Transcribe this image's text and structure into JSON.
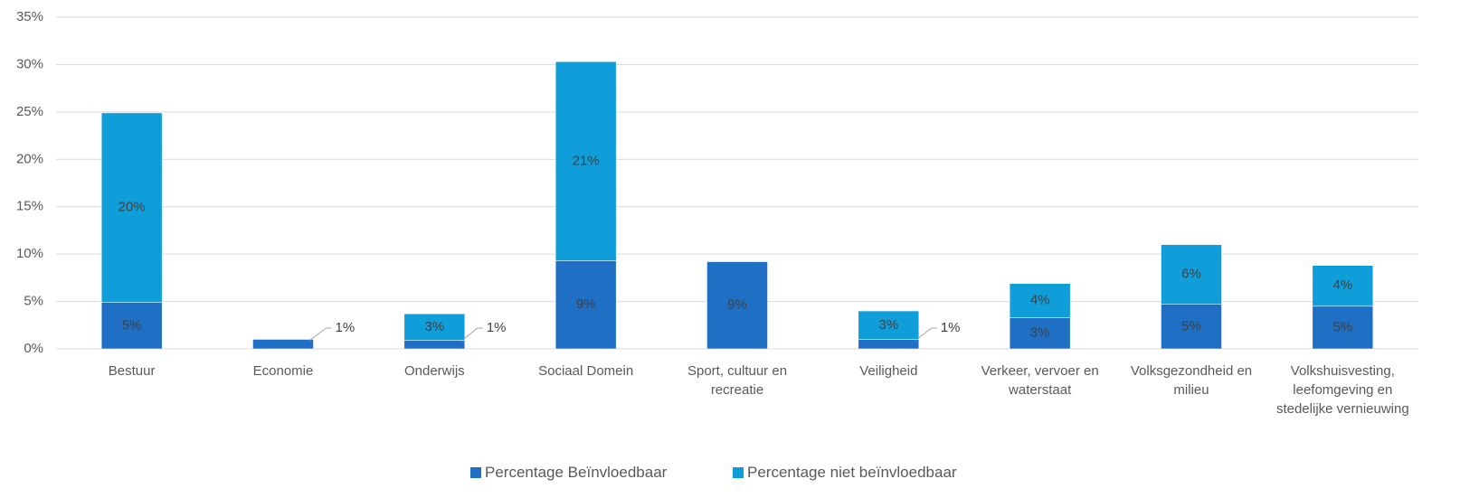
{
  "chart_data": {
    "type": "stacked_bar",
    "categories": [
      "Bestuur",
      "Economie",
      "Onderwijs",
      "Sociaal Domein",
      "Sport, cultuur en recreatie",
      "Veiligheid",
      "Verkeer, vervoer en waterstaat",
      "Volksgezondheid en milieu",
      "Volkshuisvesting, leefomgeving en stedelijke vernieuwing"
    ],
    "series": [
      {
        "name": "Percentage Beïnvloedbaar",
        "color": "#1f6fc5",
        "values": [
          4.9,
          1.0,
          0.9,
          9.3,
          9.2,
          1.0,
          3.3,
          4.7,
          4.5
        ],
        "value_labels": [
          "5%",
          "1%",
          "1%",
          "9%",
          "9%",
          "1%",
          "3%",
          "5%",
          "5%"
        ]
      },
      {
        "name": "Percentage niet beïnvloedbaar",
        "color": "#0f9ed9",
        "values": [
          20.0,
          0,
          2.8,
          21.0,
          0,
          3.0,
          3.6,
          6.3,
          4.3
        ],
        "value_labels": [
          "20%",
          null,
          "3%",
          "21%",
          null,
          "3%",
          "4%",
          "6%",
          "4%"
        ]
      }
    ],
    "ylim": [
      0,
      35
    ],
    "yticks": [
      {
        "value": 0,
        "label": "0%"
      },
      {
        "value": 5,
        "label": "5%"
      },
      {
        "value": 10,
        "label": "10%"
      },
      {
        "value": 15,
        "label": "15%"
      },
      {
        "value": 20,
        "label": "20%"
      },
      {
        "value": 25,
        "label": "25%"
      },
      {
        "value": 30,
        "label": "30%"
      },
      {
        "value": 35,
        "label": "35%"
      }
    ],
    "grid": true,
    "legend": "bottom"
  }
}
